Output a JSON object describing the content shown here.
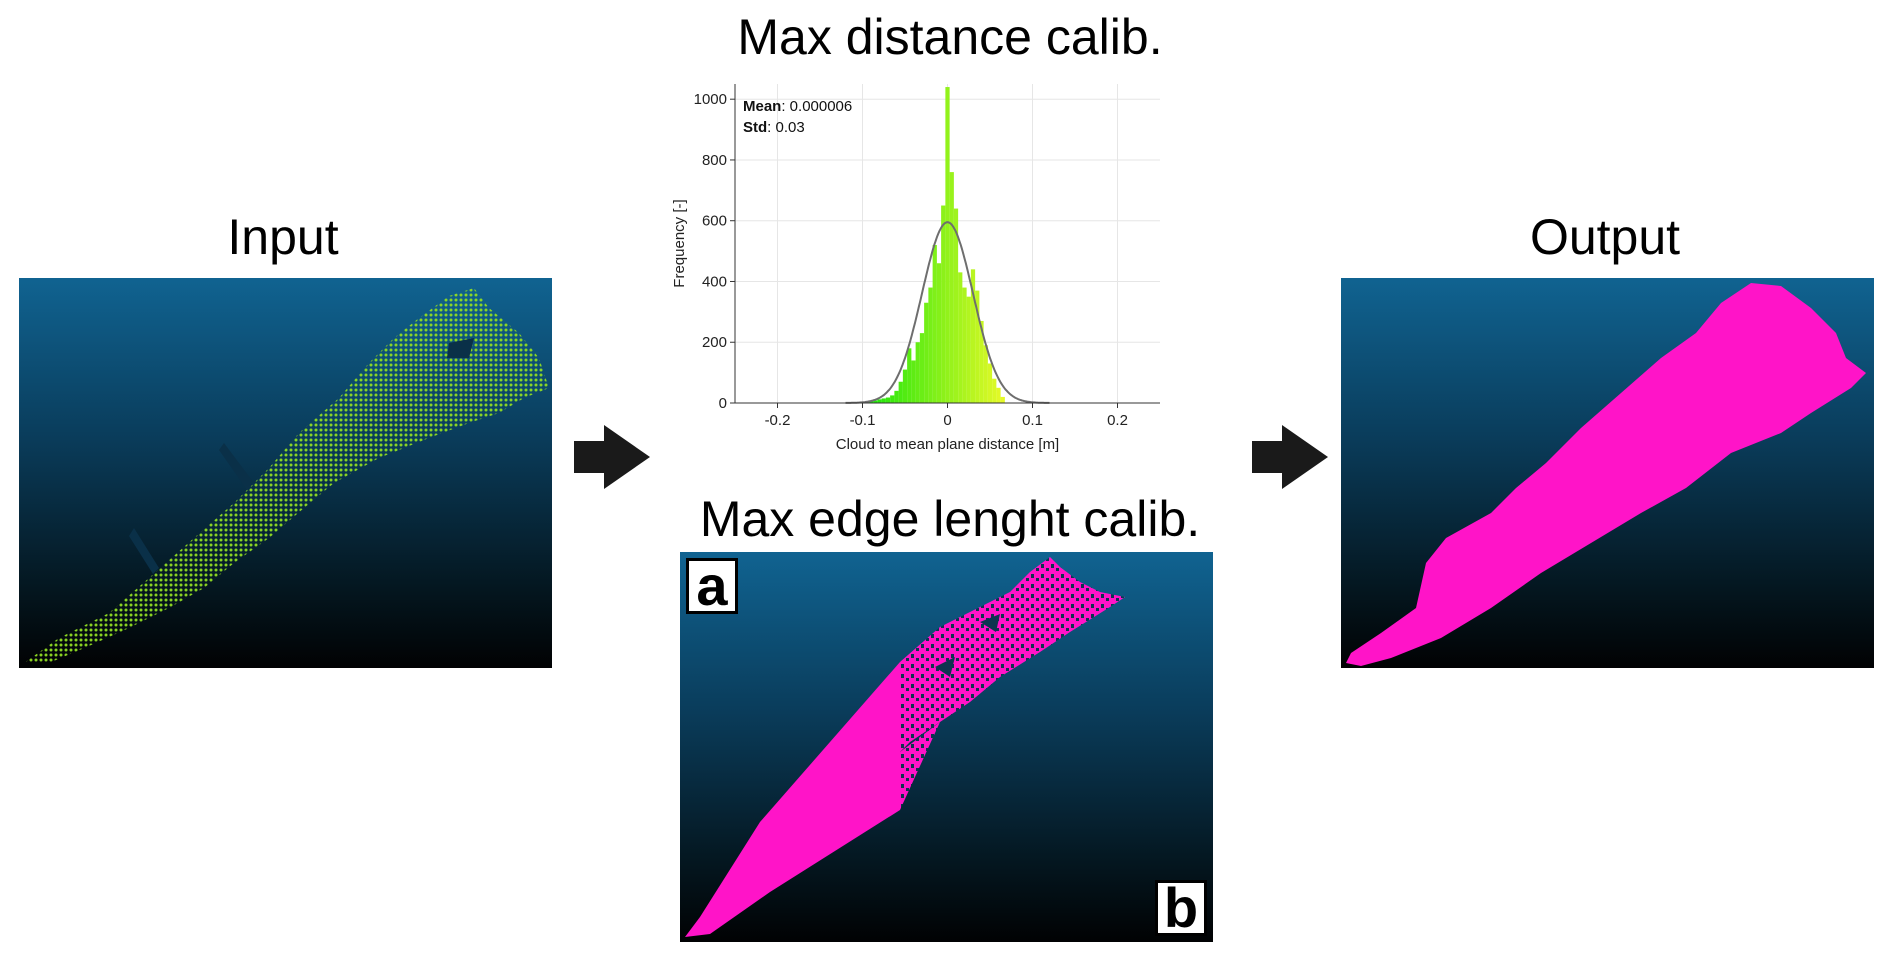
{
  "titles": {
    "input": "Input",
    "max_distance": "Max distance calib.",
    "max_edge": "Max edge lenght calib.",
    "output": "Output"
  },
  "badges": {
    "a": "a",
    "b": "b"
  },
  "colors": {
    "mesh_magenta": "#ff14c8",
    "point_green": "#7fd31a",
    "arrow": "#1a1a1a"
  },
  "chart_data": {
    "type": "bar",
    "xlabel": "Cloud to mean plane distance [m]",
    "ylabel": "Frequency [-]",
    "xlim": [
      -0.25,
      0.25
    ],
    "ylim": [
      0,
      1050
    ],
    "xticks": [
      -0.2,
      -0.1,
      0,
      0.1,
      0.2
    ],
    "xtick_labels": [
      "-0.2",
      "-0.1",
      "0",
      "0.1",
      "0.2"
    ],
    "yticks": [
      0,
      200,
      400,
      600,
      800,
      1000
    ],
    "ytick_labels": [
      "0",
      "200",
      "400",
      "600",
      "800",
      "1000"
    ],
    "grid": true,
    "stats": [
      {
        "label": "Mean",
        "value": ": 0.000006"
      },
      {
        "label": "Std",
        "value": ": 0.03"
      }
    ],
    "bin_width": 0.005,
    "bins": [
      {
        "x": -0.09,
        "y": 5
      },
      {
        "x": -0.085,
        "y": 8
      },
      {
        "x": -0.08,
        "y": 12
      },
      {
        "x": -0.075,
        "y": 15
      },
      {
        "x": -0.07,
        "y": 18
      },
      {
        "x": -0.065,
        "y": 25
      },
      {
        "x": -0.06,
        "y": 40
      },
      {
        "x": -0.055,
        "y": 70
      },
      {
        "x": -0.05,
        "y": 110
      },
      {
        "x": -0.045,
        "y": 180
      },
      {
        "x": -0.04,
        "y": 140
      },
      {
        "x": -0.035,
        "y": 200
      },
      {
        "x": -0.03,
        "y": 230
      },
      {
        "x": -0.025,
        "y": 330
      },
      {
        "x": -0.02,
        "y": 380
      },
      {
        "x": -0.015,
        "y": 520
      },
      {
        "x": -0.01,
        "y": 460
      },
      {
        "x": -0.005,
        "y": 650
      },
      {
        "x": 0.0,
        "y": 1040
      },
      {
        "x": 0.005,
        "y": 760
      },
      {
        "x": 0.01,
        "y": 640
      },
      {
        "x": 0.015,
        "y": 430
      },
      {
        "x": 0.02,
        "y": 380
      },
      {
        "x": 0.025,
        "y": 350
      },
      {
        "x": 0.03,
        "y": 440
      },
      {
        "x": 0.035,
        "y": 370
      },
      {
        "x": 0.04,
        "y": 270
      },
      {
        "x": 0.045,
        "y": 190
      },
      {
        "x": 0.05,
        "y": 130
      },
      {
        "x": 0.055,
        "y": 80
      },
      {
        "x": 0.06,
        "y": 50
      },
      {
        "x": 0.065,
        "y": 20
      }
    ],
    "fit_curve": {
      "type": "gaussian",
      "mean": 6e-06,
      "std": 0.03,
      "peak": 595
    }
  }
}
